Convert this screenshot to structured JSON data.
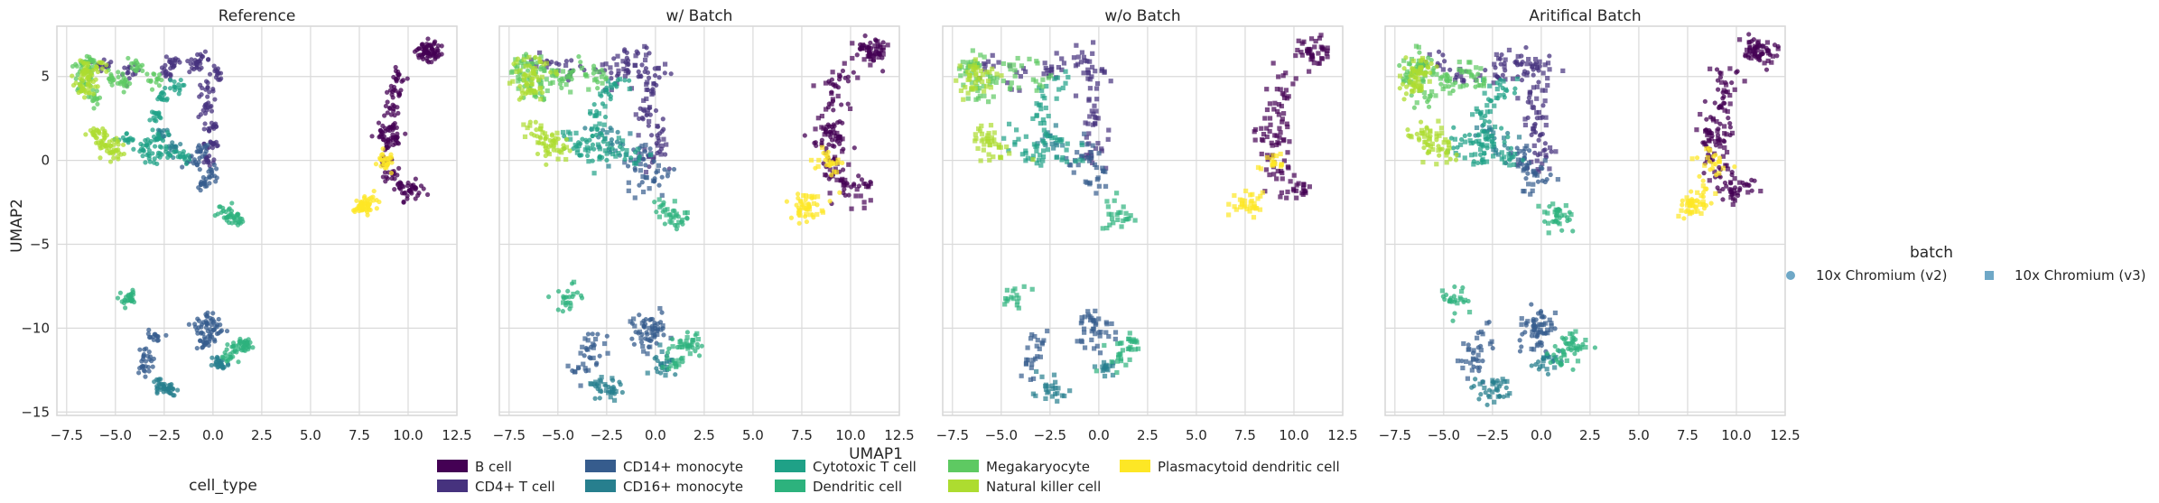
{
  "figure": {
    "xlabel": "UMAP1",
    "ylabel": "UMAP2"
  },
  "chart_data": {
    "type": "scatter",
    "panels": [
      {
        "title": "Reference",
        "mode": "reference"
      },
      {
        "title": "w/ Batch",
        "mode": "with_batch"
      },
      {
        "title": "w/o Batch",
        "mode": "without_batch"
      },
      {
        "title": "Aritifical Batch",
        "mode": "artificial"
      }
    ],
    "xlim": [
      -8,
      12.5
    ],
    "ylim": [
      -15.2,
      8
    ],
    "xticks": [
      "−7.5",
      "−5.0",
      "−2.5",
      "0.0",
      "2.5",
      "5.0",
      "7.5",
      "10.0",
      "12.5"
    ],
    "xtick_values": [
      -7.5,
      -5,
      -2.5,
      0,
      2.5,
      5,
      7.5,
      10,
      12.5
    ],
    "yticks": [
      "−15",
      "−10",
      "−5",
      "0",
      "5"
    ],
    "ytick_values": [
      -15,
      -10,
      -5,
      0,
      5
    ],
    "grid": true,
    "sharey": true,
    "cell_type_legend": {
      "title": "cell_type",
      "placement": "bottom-center",
      "entries": [
        {
          "name": "B cell",
          "color": "#440154"
        },
        {
          "name": "CD4+ T cell",
          "color": "#46327e"
        },
        {
          "name": "CD14+ monocyte",
          "color": "#365c8d"
        },
        {
          "name": "CD16+ monocyte",
          "color": "#277f8e"
        },
        {
          "name": "Cytotoxic T cell",
          "color": "#1fa187"
        },
        {
          "name": "Dendritic cell",
          "color": "#2db27d"
        },
        {
          "name": "Megakaryocyte",
          "color": "#5ec962"
        },
        {
          "name": "Natural killer cell",
          "color": "#addc30"
        },
        {
          "name": "Plasmacytoid dendritic cell",
          "color": "#fde725"
        }
      ]
    },
    "batch_legend": {
      "title": "batch",
      "placement": "right",
      "entries": [
        {
          "name": "10x Chromium (v2)",
          "marker": "circle",
          "color": "#6fa8c7"
        },
        {
          "name": "10x Chromium (v3)",
          "marker": "square",
          "color": "#6fa8c7"
        }
      ]
    },
    "clusters": [
      {
        "cell_type": "B cell",
        "points": [
          [
            10.8,
            6.6
          ],
          [
            11.1,
            6.8
          ],
          [
            11.4,
            6.5
          ],
          [
            10.9,
            6.3
          ],
          [
            11.2,
            6.2
          ],
          [
            9.5,
            5.0
          ],
          [
            9.3,
            4.0
          ],
          [
            9.2,
            3.0
          ],
          [
            9.0,
            2.0
          ],
          [
            8.8,
            1.0
          ],
          [
            8.9,
            0.0
          ],
          [
            9.2,
            -0.8
          ],
          [
            9.6,
            -1.5
          ],
          [
            10.0,
            -2.0
          ],
          [
            10.4,
            -1.6
          ],
          [
            8.6,
            1.6
          ],
          [
            9.4,
            1.2
          ]
        ]
      },
      {
        "cell_type": "CD4+ T cell",
        "points": [
          [
            -5.6,
            5.8
          ],
          [
            -4.2,
            5.2
          ],
          [
            -2.0,
            5.9
          ],
          [
            -0.6,
            6.0
          ],
          [
            0.2,
            5.2
          ],
          [
            -0.4,
            4.2
          ],
          [
            -0.3,
            3.0
          ],
          [
            -0.1,
            2.0
          ],
          [
            0.0,
            1.0
          ],
          [
            -0.2,
            0.0
          ],
          [
            -2.4,
            5.2
          ],
          [
            -1.0,
            5.6
          ]
        ]
      },
      {
        "cell_type": "CD14+ monocyte",
        "points": [
          [
            -1.0,
            -0.2
          ],
          [
            -0.6,
            0.6
          ],
          [
            0.0,
            -0.8
          ],
          [
            -0.4,
            -1.4
          ],
          [
            -0.6,
            -10.0
          ],
          [
            -0.3,
            -9.4
          ],
          [
            0.0,
            -10.4
          ],
          [
            -0.5,
            -10.9
          ],
          [
            0.2,
            -9.8
          ],
          [
            -3.1,
            -10.6
          ],
          [
            -3.4,
            -11.6
          ],
          [
            -3.6,
            -12.4
          ]
        ]
      },
      {
        "cell_type": "CD16+ monocyte",
        "points": [
          [
            -2.8,
            -13.4
          ],
          [
            -2.4,
            -13.8
          ],
          [
            -2.2,
            -13.6
          ],
          [
            0.4,
            -12.2
          ],
          [
            0.3,
            -12.0
          ],
          [
            -2.6,
            1.6
          ],
          [
            -2.0,
            0.8
          ]
        ]
      },
      {
        "cell_type": "Cytotoxic T cell",
        "points": [
          [
            -4.4,
            1.2
          ],
          [
            -3.6,
            0.8
          ],
          [
            -2.8,
            1.5
          ],
          [
            -2.4,
            0.6
          ],
          [
            -3.0,
            2.6
          ],
          [
            -2.6,
            3.8
          ],
          [
            -2.0,
            4.4
          ],
          [
            -1.6,
            0.2
          ],
          [
            -3.2,
            0.2
          ]
        ]
      },
      {
        "cell_type": "Dendritic cell",
        "points": [
          [
            1.0,
            -3.4
          ],
          [
            1.1,
            -3.5
          ],
          [
            -4.4,
            -8.3
          ],
          [
            -4.3,
            -8.2
          ],
          [
            1.6,
            -11.0
          ],
          [
            1.2,
            -11.3
          ],
          [
            0.8,
            -11.8
          ],
          [
            1.8,
            -10.9
          ],
          [
            0.6,
            -3.0
          ]
        ]
      },
      {
        "cell_type": "Megakaryocyte",
        "points": [
          [
            -6.8,
            5.6
          ],
          [
            -6.6,
            4.6
          ],
          [
            -6.4,
            5.2
          ],
          [
            -5.2,
            4.9
          ],
          [
            -4.6,
            4.6
          ],
          [
            -6.0,
            3.8
          ],
          [
            -4.0,
            5.6
          ],
          [
            -3.0,
            4.8
          ],
          [
            -6.2,
            5.9
          ]
        ]
      },
      {
        "cell_type": "Natural killer cell",
        "points": [
          [
            -6.5,
            5.5
          ],
          [
            -6.4,
            5.0
          ],
          [
            -6.7,
            4.2
          ],
          [
            -6.3,
            4.5
          ],
          [
            -5.8,
            1.4
          ],
          [
            -5.5,
            0.8
          ],
          [
            -5.0,
            0.4
          ],
          [
            -6.0,
            1.6
          ],
          [
            -5.2,
            1.0
          ],
          [
            -5.9,
            5.6
          ]
        ]
      },
      {
        "cell_type": "Plasmacytoid dendritic cell",
        "points": [
          [
            7.6,
            -2.9
          ],
          [
            7.8,
            -2.7
          ],
          [
            8.0,
            -2.4
          ],
          [
            7.7,
            -2.8
          ],
          [
            8.8,
            0.1
          ],
          [
            8.9,
            -0.2
          ]
        ]
      }
    ]
  }
}
